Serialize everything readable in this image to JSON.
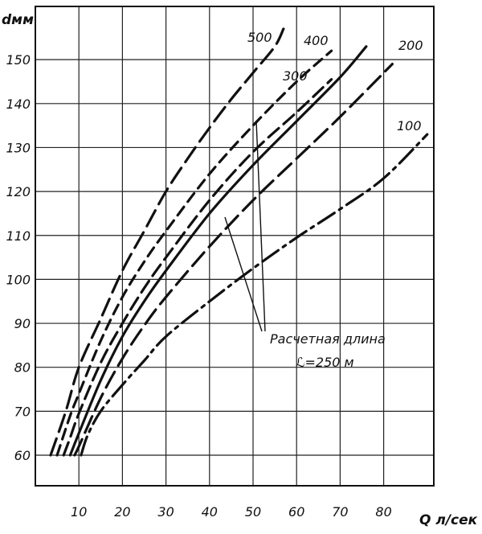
{
  "chart_data": {
    "type": "line",
    "title": "",
    "xlabel": "Q л/сек",
    "ylabel": "dмм",
    "xlim": [
      0,
      90
    ],
    "ylim": [
      56,
      158
    ],
    "x_ticks": [
      10,
      20,
      30,
      40,
      50,
      60,
      70,
      80
    ],
    "y_ticks": [
      60,
      70,
      80,
      90,
      100,
      110,
      120,
      130,
      140,
      150
    ],
    "grid": true,
    "annotation": {
      "line1": "Расчетная длина",
      "line2": "ℒ=250 м",
      "points_to_series": "300"
    },
    "series": [
      {
        "name": "500",
        "style": "long-dash",
        "x": [
          3.5,
          7,
          10,
          15,
          20,
          25,
          30,
          35,
          40,
          45,
          50,
          55,
          57
        ],
        "y": [
          60,
          70,
          80,
          91,
          102,
          111,
          120,
          127.5,
          134.5,
          141,
          147,
          153,
          157
        ]
      },
      {
        "name": "400",
        "style": "short-dash",
        "x": [
          5,
          8,
          10,
          15,
          20,
          25,
          30,
          40,
          50,
          60,
          68
        ],
        "y": [
          60,
          69,
          74,
          86,
          96,
          104,
          111,
          124,
          135,
          145,
          152
        ]
      },
      {
        "name": "300",
        "style": "dash",
        "x": [
          6.5,
          8,
          10,
          15,
          20,
          25,
          30,
          40,
          50,
          60,
          68
        ],
        "y": [
          60,
          64,
          69.5,
          81,
          90,
          98,
          105,
          118,
          129,
          138,
          145.5
        ]
      },
      {
        "name": "",
        "style": "solid",
        "x": [
          8,
          10,
          15,
          20,
          25,
          30,
          40,
          50,
          60,
          70,
          76
        ],
        "y": [
          60,
          65,
          77,
          87,
          95,
          102,
          115,
          126,
          136,
          146,
          153
        ]
      },
      {
        "name": "200",
        "style": "long-dash",
        "x": [
          9,
          10,
          15,
          20,
          25,
          30,
          40,
          50,
          60,
          70,
          82
        ],
        "y": [
          60,
          62,
          73,
          82,
          89.5,
          96,
          107.5,
          118,
          127.5,
          137,
          149
        ]
      },
      {
        "name": "100",
        "style": "dash-dot",
        "x": [
          10.5,
          12,
          15,
          20,
          25,
          30,
          40,
          50,
          60,
          70,
          80,
          90
        ],
        "y": [
          60,
          64.5,
          70,
          76,
          81.5,
          87,
          95,
          102.5,
          109.5,
          116,
          123,
          133
        ]
      }
    ]
  }
}
